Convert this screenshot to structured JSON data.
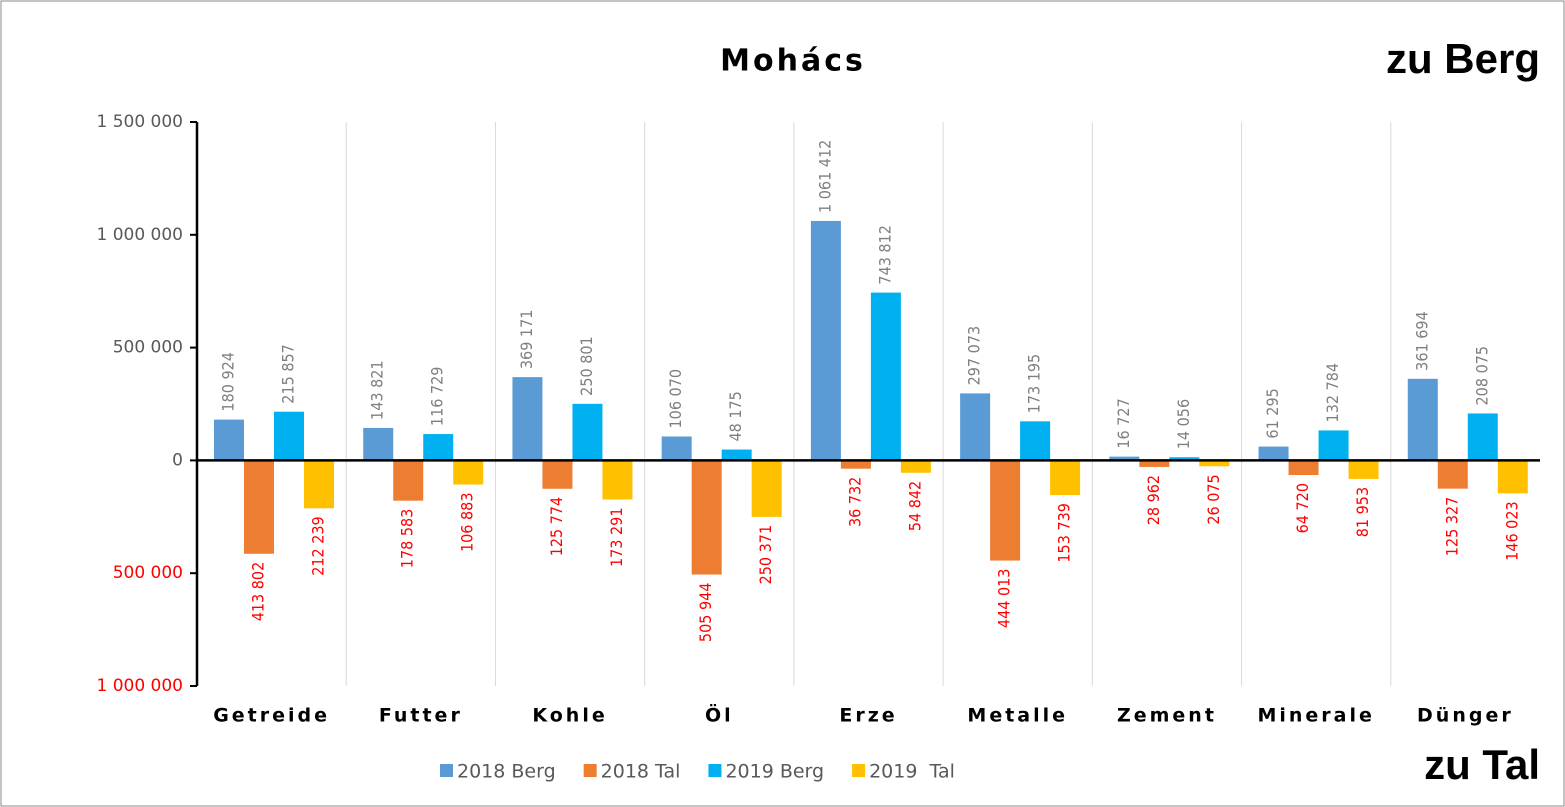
{
  "chart_data": {
    "type": "bar",
    "title": "Mohács",
    "annotations": [
      "zu Berg",
      "zu Tal"
    ],
    "categories": [
      "Getreide",
      "Futter",
      "Kohle",
      "Öl",
      "Erze",
      "Metalle",
      "Zement",
      "Minerale",
      "Dünger"
    ],
    "series": [
      {
        "name": "2018 Berg",
        "color": "#5b9bd5",
        "values": [
          180924,
          143821,
          369171,
          106070,
          1061412,
          297073,
          16727,
          61295,
          361694
        ],
        "value_labels": [
          "180 924",
          "143 821",
          "369 171",
          "106 070",
          "1 061 412",
          "297 073",
          "16 727",
          "61 295",
          "361 694"
        ]
      },
      {
        "name": "2018 Tal",
        "color": "#ed7d31",
        "values": [
          -413802,
          -178583,
          -125774,
          -505944,
          -36732,
          -444013,
          -28962,
          -64720,
          -125327
        ],
        "value_labels": [
          "413 802",
          "178 583",
          "125 774",
          "505 944",
          "36 732",
          "444 013",
          "28 962",
          "64 720",
          "125 327"
        ]
      },
      {
        "name": "2019 Berg",
        "color": "#00b0f0",
        "values": [
          215857,
          116729,
          250801,
          48175,
          743812,
          173195,
          14056,
          132784,
          208075
        ],
        "value_labels": [
          "215 857",
          "116 729",
          "250 801",
          "48 175",
          "743 812",
          "173 195",
          "14 056",
          "132 784",
          "208 075"
        ]
      },
      {
        "name": "2019  Tal",
        "color": "#ffc000",
        "values": [
          -212239,
          -106883,
          -173291,
          -250371,
          -54842,
          -153739,
          -26075,
          -81953,
          -146023
        ],
        "value_labels": [
          "212 239",
          "106 883",
          "173 291",
          "250 371",
          "54 842",
          "153 739",
          "26 075",
          "81 953",
          "146 023"
        ]
      }
    ],
    "ylim": [
      -1000000,
      1500000
    ],
    "yticks": [
      {
        "value": -1000000,
        "label": "1 000 000"
      },
      {
        "value": -500000,
        "label": "500 000"
      },
      0,
      {
        "value": 500000,
        "label": "500 000"
      },
      {
        "value": 1000000,
        "label": "1 000 000"
      },
      {
        "value": 1500000,
        "label": "1 500 000"
      }
    ],
    "grid": false
  }
}
